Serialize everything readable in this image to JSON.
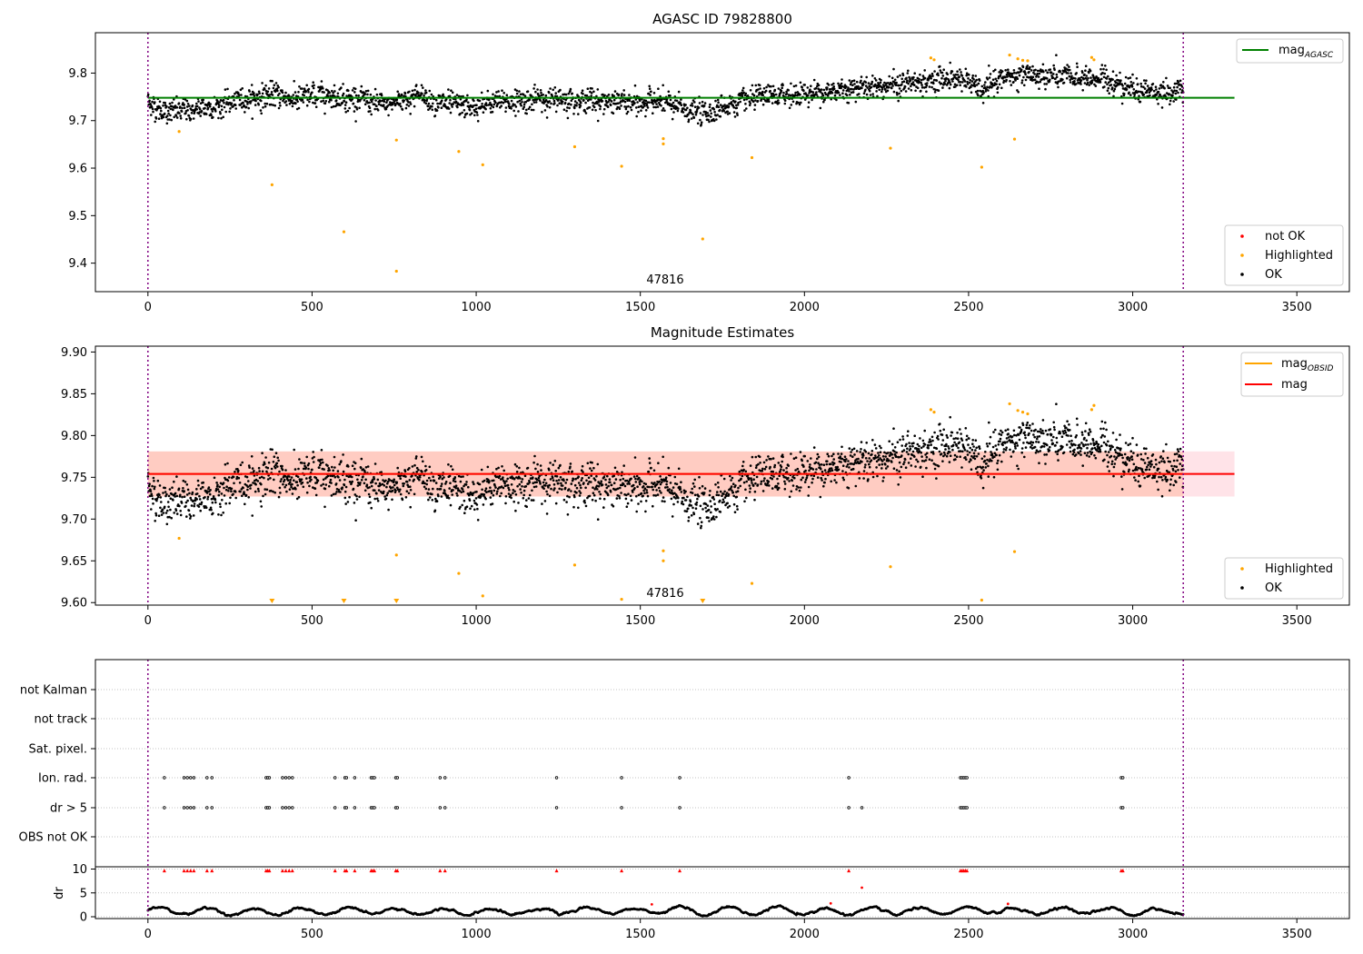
{
  "chart_data": [
    {
      "type": "scatter",
      "title": "AGASC ID 79828800",
      "xlim": [
        -160,
        3660
      ],
      "ylim": [
        9.34,
        9.885
      ],
      "xticks": [
        0,
        500,
        1000,
        1500,
        2000,
        2500,
        3000,
        3500
      ],
      "yticks": [
        9.4,
        9.5,
        9.6,
        9.7,
        9.8
      ],
      "obsid_label": "47816",
      "obsid_label_x": 1570,
      "vlines": [
        0,
        3154
      ],
      "hline": {
        "name": "mag_AGASC",
        "value": 9.748,
        "x": [
          0,
          3310
        ],
        "color": "#008000"
      },
      "legend_upper": [
        {
          "label": "mag",
          "sub": "AGASC",
          "color": "#008000"
        }
      ],
      "legend_lower": [
        {
          "label": "not OK",
          "color": "#ff0000"
        },
        {
          "label": "Highlighted",
          "color": "#ffa500"
        },
        {
          "label": "OK",
          "color": "#000000"
        }
      ],
      "series": [
        {
          "name": "OK",
          "color": "#000000",
          "trend": [
            [
              0,
              9.74
            ],
            [
              40,
              9.72
            ],
            [
              120,
              9.72
            ],
            [
              200,
              9.73
            ],
            [
              260,
              9.74
            ],
            [
              300,
              9.745
            ],
            [
              380,
              9.755
            ],
            [
              450,
              9.745
            ],
            [
              550,
              9.755
            ],
            [
              650,
              9.745
            ],
            [
              720,
              9.73
            ],
            [
              770,
              9.745
            ],
            [
              820,
              9.755
            ],
            [
              900,
              9.735
            ],
            [
              1000,
              9.725
            ],
            [
              1060,
              9.74
            ],
            [
              1200,
              9.745
            ],
            [
              1300,
              9.745
            ],
            [
              1400,
              9.74
            ],
            [
              1500,
              9.735
            ],
            [
              1550,
              9.745
            ],
            [
              1600,
              9.73
            ],
            [
              1650,
              9.72
            ],
            [
              1700,
              9.715
            ],
            [
              1750,
              9.73
            ],
            [
              1850,
              9.745
            ],
            [
              1950,
              9.755
            ],
            [
              2050,
              9.76
            ],
            [
              2150,
              9.77
            ],
            [
              2250,
              9.775
            ],
            [
              2350,
              9.78
            ],
            [
              2450,
              9.79
            ],
            [
              2500,
              9.785
            ],
            [
              2540,
              9.76
            ],
            [
              2600,
              9.79
            ],
            [
              2700,
              9.795
            ],
            [
              2800,
              9.79
            ],
            [
              2900,
              9.79
            ],
            [
              3000,
              9.77
            ],
            [
              3100,
              9.755
            ],
            [
              3154,
              9.765
            ]
          ],
          "scatter": 0.022,
          "count": 2600
        },
        {
          "name": "Highlighted",
          "color": "#ffa500",
          "points": [
            [
              95,
              9.677
            ],
            [
              378,
              9.565
            ],
            [
              597,
              9.466
            ],
            [
              757,
              9.383
            ],
            [
              757,
              9.659
            ],
            [
              947,
              9.635
            ],
            [
              1020,
              9.607
            ],
            [
              1300,
              9.645
            ],
            [
              1443,
              9.604
            ],
            [
              1570,
              9.662
            ],
            [
              1570,
              9.651
            ],
            [
              1690,
              9.451
            ],
            [
              1840,
              9.622
            ],
            [
              2262,
              9.642
            ],
            [
              2540,
              9.602
            ],
            [
              2640,
              9.661
            ],
            [
              2385,
              9.832
            ],
            [
              2395,
              9.828
            ],
            [
              2625,
              9.838
            ],
            [
              2650,
              9.83
            ],
            [
              2665,
              9.827
            ],
            [
              2680,
              9.826
            ],
            [
              2875,
              9.833
            ],
            [
              2882,
              9.828
            ]
          ]
        }
      ]
    },
    {
      "type": "scatter",
      "title": "Magnitude Estimates",
      "xlim": [
        -160,
        3660
      ],
      "ylim": [
        9.597,
        9.907
      ],
      "xticks": [
        0,
        500,
        1000,
        1500,
        2000,
        2500,
        3000,
        3500
      ],
      "yticks": [
        9.6,
        9.65,
        9.7,
        9.75,
        9.8,
        9.85,
        9.9
      ],
      "obsid_label": "47816",
      "obsid_label_x": 1570,
      "vlines": [
        0,
        3154
      ],
      "band_outer": {
        "x": [
          0,
          3310
        ],
        "y": [
          9.727,
          9.781
        ],
        "color": "#ffc0cb"
      },
      "band_inner": {
        "x": [
          0,
          3154
        ],
        "y": [
          9.727,
          9.781
        ],
        "color": "#ffa07a"
      },
      "obsid_line": {
        "name": "mag_OBSID",
        "value": 9.754,
        "x": [
          0,
          3154
        ],
        "color": "#ffa500"
      },
      "mag_line": {
        "name": "mag",
        "value": 9.754,
        "x": [
          0,
          3310
        ],
        "color": "#ff0000"
      },
      "legend_upper": [
        {
          "label": "mag",
          "sub": "OBSID",
          "color": "#ffa500"
        },
        {
          "label": "mag",
          "sub": "",
          "color": "#ff0000"
        }
      ],
      "legend_lower": [
        {
          "label": "Highlighted",
          "color": "#ffa500"
        },
        {
          "label": "OK",
          "color": "#000000"
        }
      ],
      "clipped": [
        378,
        597,
        757,
        1690
      ],
      "series": [
        {
          "name": "OK",
          "color": "#000000",
          "same_as_panel": 0
        },
        {
          "name": "Highlighted",
          "color": "#ffa500",
          "points": [
            [
              95,
              9.677
            ],
            [
              757,
              9.657
            ],
            [
              947,
              9.635
            ],
            [
              1020,
              9.608
            ],
            [
              1300,
              9.645
            ],
            [
              1443,
              9.604
            ],
            [
              1570,
              9.662
            ],
            [
              1570,
              9.65
            ],
            [
              1840,
              9.623
            ],
            [
              2262,
              9.643
            ],
            [
              2540,
              9.603
            ],
            [
              2640,
              9.661
            ],
            [
              2385,
              9.831
            ],
            [
              2395,
              9.828
            ],
            [
              2625,
              9.838
            ],
            [
              2650,
              9.83
            ],
            [
              2665,
              9.828
            ],
            [
              2680,
              9.826
            ],
            [
              2875,
              9.831
            ],
            [
              2882,
              9.836
            ]
          ]
        }
      ]
    },
    {
      "type": "scatter",
      "title": "",
      "xlim": [
        -160,
        3660
      ],
      "vlines": [
        0,
        3154
      ],
      "categories": [
        "not Kalman",
        "not track",
        "Sat. pixel.",
        "Ion. rad.",
        "dr > 5",
        "OBS not OK"
      ],
      "flag_x": {
        "Ion. rad.": [
          50,
          110,
          120,
          130,
          140,
          180,
          195,
          360,
          365,
          370,
          410,
          420,
          430,
          440,
          570,
          600,
          605,
          630,
          680,
          685,
          690,
          755,
          760,
          890,
          905,
          1245,
          1443,
          1620,
          2135,
          2475,
          2480,
          2485,
          2490,
          2495,
          2965,
          2970
        ],
        "dr > 5": [
          50,
          110,
          120,
          130,
          140,
          180,
          195,
          360,
          365,
          370,
          410,
          420,
          430,
          440,
          570,
          600,
          605,
          630,
          680,
          685,
          690,
          755,
          760,
          890,
          905,
          1245,
          1443,
          1620,
          2135,
          2175,
          2475,
          2480,
          2485,
          2490,
          2495,
          2965,
          2970
        ]
      },
      "dr_panel": {
        "ylabel": "dr",
        "ylim": [
          0,
          10
        ],
        "yticks": [
          0,
          5,
          10
        ],
        "capped_x": [
          50,
          110,
          120,
          130,
          140,
          180,
          195,
          360,
          365,
          370,
          410,
          420,
          430,
          440,
          570,
          600,
          605,
          630,
          680,
          685,
          690,
          755,
          760,
          890,
          905,
          1245,
          1443,
          1620,
          2135,
          2475,
          2480,
          2485,
          2490,
          2495,
          2965,
          2970
        ],
        "outliers": [
          [
            2175,
            6.1
          ],
          [
            2080,
            2.8
          ],
          [
            1535,
            2.6
          ],
          [
            2620,
            2.7
          ]
        ]
      }
    }
  ]
}
